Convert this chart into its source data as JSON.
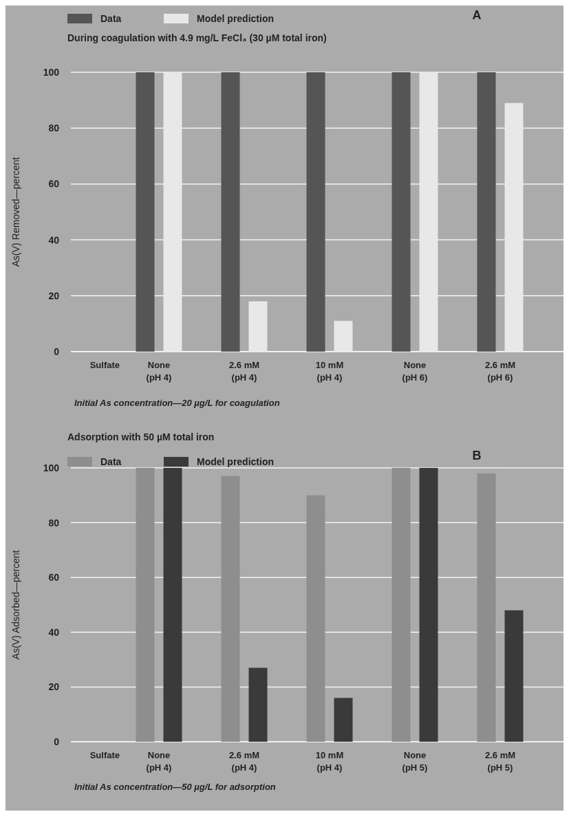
{
  "chart_data": [
    {
      "type": "bar",
      "title": "During coagulation with 4.9 mg/L FeCl₃ (30 µM total iron)",
      "ylabel": "As(V) Removed—percent",
      "xlabel": "Sulfate",
      "categories": [
        "None (pH 4)",
        "2.6 mM (pH 4)",
        "10 mM (pH 4)",
        "None (pH 6)",
        "2.6 mM (pH 6)"
      ],
      "series": [
        {
          "name": "Data",
          "color": "#555555",
          "values": [
            100,
            100,
            100,
            100,
            100
          ]
        },
        {
          "name": "Model prediction",
          "color": "#e8e8e8",
          "values": [
            100,
            18,
            11,
            100,
            89
          ]
        }
      ],
      "ylim": [
        0,
        100
      ],
      "yticks": [
        0,
        20,
        40,
        60,
        80,
        100
      ],
      "grid": "y",
      "legend": "top left",
      "annotations": [
        "A",
        "Initial As concentration—20 µg/L for coagulation"
      ]
    },
    {
      "type": "bar",
      "title": "Adsorption with 50 µM total iron",
      "ylabel": "As(V) Adsorbed—percent",
      "xlabel": "Sulfate",
      "categories": [
        "None (pH 4)",
        "2.6 mM (pH 4)",
        "10 mM (pH 4)",
        "None (pH 5)",
        "2.6 mM (pH 5)"
      ],
      "series": [
        {
          "name": "Data",
          "color": "#8e8e8e",
          "values": [
            100,
            97,
            90,
            100,
            98
          ]
        },
        {
          "name": "Model prediction",
          "color": "#3a3a3a",
          "values": [
            100,
            27,
            16,
            100,
            48
          ]
        }
      ],
      "ylim": [
        0,
        100
      ],
      "yticks": [
        0,
        20,
        40,
        60,
        80,
        100
      ],
      "grid": "y",
      "legend": "top left",
      "annotations": [
        "B",
        "Initial As concentration—50 µg/L for adsorption"
      ]
    }
  ]
}
